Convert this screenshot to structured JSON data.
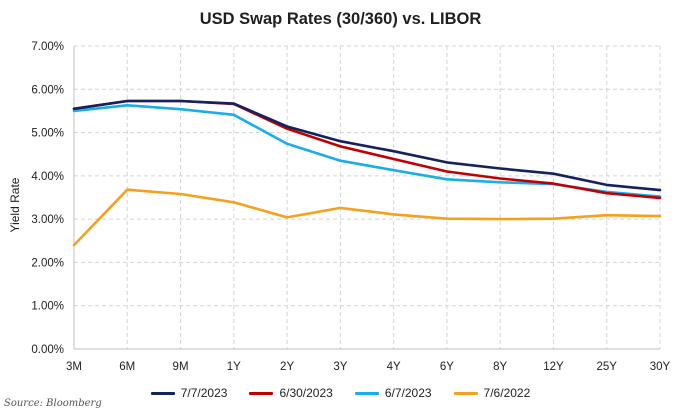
{
  "chart_data": {
    "type": "line",
    "title": "USD Swap Rates (30/360) vs. LIBOR",
    "xlabel": "",
    "ylabel": "Yield Rate",
    "categories": [
      "3M",
      "6M",
      "9M",
      "1Y",
      "2Y",
      "3Y",
      "4Y",
      "6Y",
      "8Y",
      "12Y",
      "25Y",
      "30Y"
    ],
    "ylim": [
      0,
      7
    ],
    "yticks": [
      "0.00%",
      "1.00%",
      "2.00%",
      "3.00%",
      "4.00%",
      "5.00%",
      "6.00%",
      "7.00%"
    ],
    "grid": "dashed horizontal and vertical",
    "legend_position": "bottom",
    "series": [
      {
        "name": "7/7/2023",
        "color": "#14225e",
        "values": [
          5.55,
          5.73,
          5.73,
          5.67,
          5.14,
          4.8,
          4.57,
          4.31,
          4.17,
          4.05,
          3.79,
          3.67
        ]
      },
      {
        "name": "6/30/2023",
        "color": "#c00000",
        "values": [
          5.55,
          5.73,
          5.73,
          5.66,
          5.09,
          4.68,
          4.39,
          4.1,
          3.94,
          3.82,
          3.6,
          3.49
        ]
      },
      {
        "name": "6/7/2023",
        "color": "#1aaee8",
        "values": [
          5.5,
          5.63,
          5.54,
          5.41,
          4.74,
          4.35,
          4.13,
          3.92,
          3.85,
          3.81,
          3.63,
          3.52
        ]
      },
      {
        "name": "7/6/2022",
        "color": "#f5a11c",
        "values": [
          2.4,
          3.68,
          3.58,
          3.39,
          3.04,
          3.26,
          3.11,
          3.01,
          3.0,
          3.01,
          3.09,
          3.07
        ]
      }
    ]
  },
  "source": "Source: Bloomberg"
}
